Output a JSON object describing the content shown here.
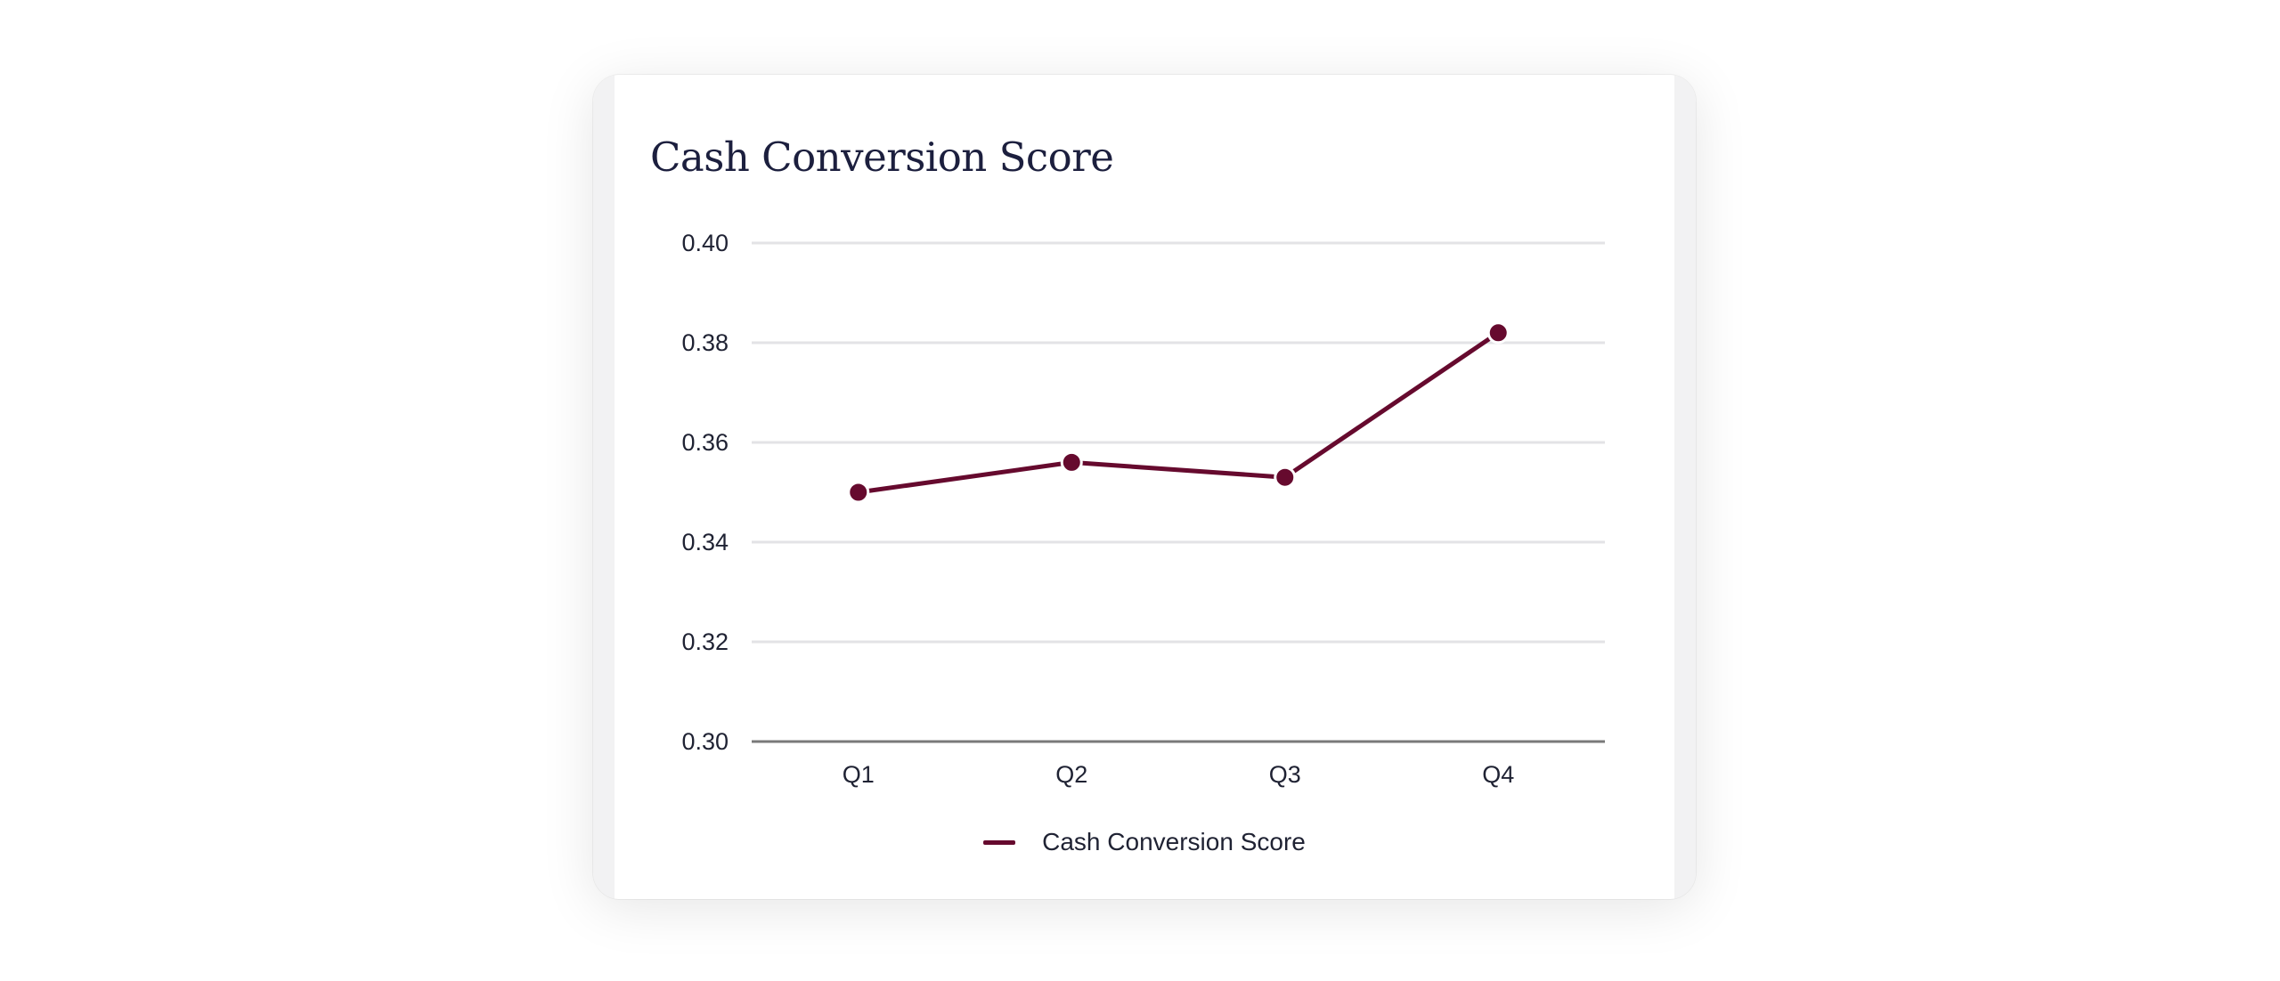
{
  "chart_data": {
    "type": "line",
    "title": "Cash Conversion Score",
    "xlabel": "",
    "ylabel": "",
    "categories": [
      "Q1",
      "Q2",
      "Q3",
      "Q4"
    ],
    "series": [
      {
        "name": "Cash Conversion Score",
        "values": [
          0.35,
          0.356,
          0.353,
          0.382
        ]
      }
    ],
    "ylim": [
      0.3,
      0.4
    ],
    "yticks": [
      "0.30",
      "0.32",
      "0.34",
      "0.36",
      "0.38",
      "0.40"
    ],
    "grid": true,
    "legend": "bottom-center",
    "colors": {
      "series": "#660a2e",
      "grid": "#e3e3e6",
      "axis": "#7a7a7a"
    }
  }
}
